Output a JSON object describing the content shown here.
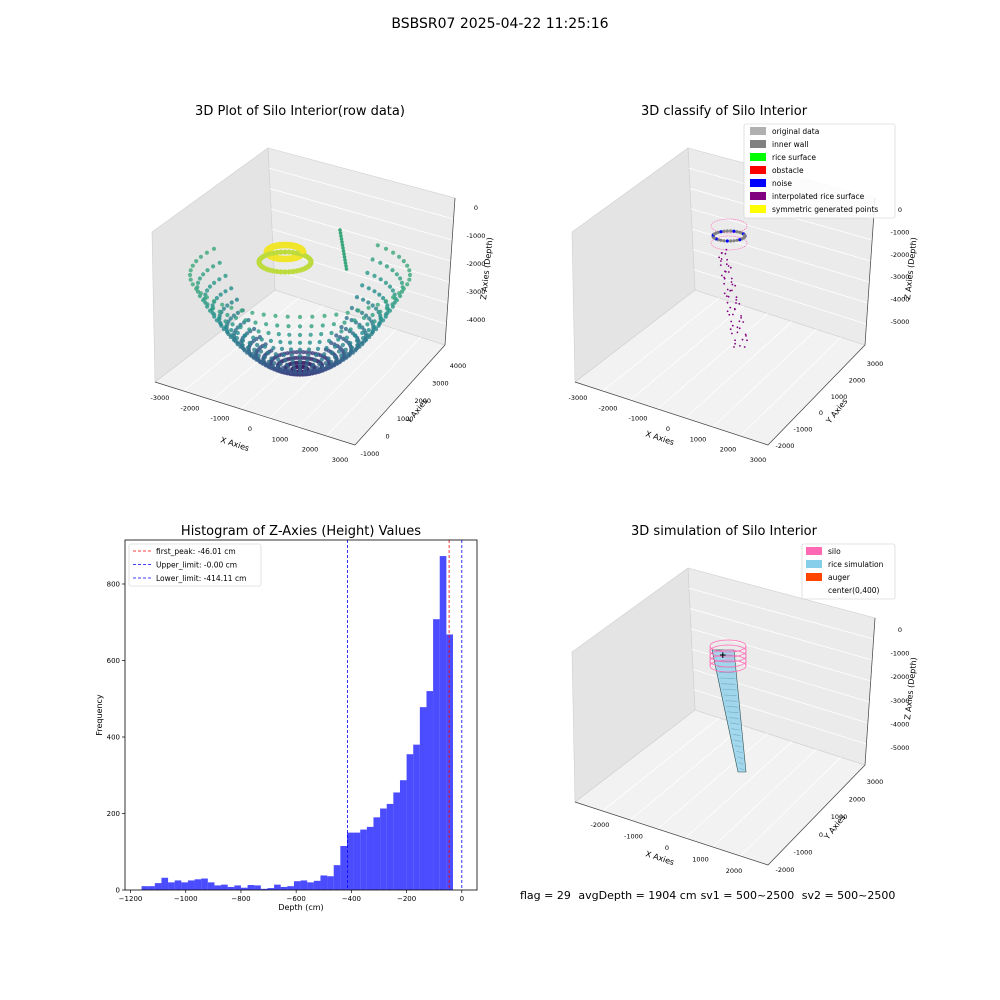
{
  "figure": {
    "suptitle": "BSBSR07 2025-04-22 11:25:16"
  },
  "panels": {
    "raw": {
      "title": "3D Plot of Silo Interior(row data)",
      "xlabel": "X Axies",
      "ylabel": "Y Axies",
      "zlabel": "Z Axies (Depth)",
      "xticks": [
        "-3000",
        "-2000",
        "-1000",
        "0",
        "1000",
        "2000",
        "3000"
      ],
      "yticks": [
        "-1000",
        "0",
        "1000",
        "2000",
        "3000",
        "4000"
      ],
      "zticks": [
        "0",
        "-1000",
        "-2000",
        "-3000",
        "-4000"
      ]
    },
    "classify": {
      "title": "3D classify of Silo Interior",
      "xlabel": "X Axies",
      "ylabel": "Y Axies",
      "zlabel": "Z Axies (Depth)",
      "xticks": [
        "-3000",
        "-2000",
        "-1000",
        "0",
        "1000",
        "2000",
        "3000"
      ],
      "yticks": [
        "-2000",
        "-1000",
        "0",
        "1000",
        "2000",
        "3000"
      ],
      "zticks": [
        "0",
        "-1000",
        "-2000",
        "-3000",
        "-4000",
        "-5000"
      ],
      "legend": [
        {
          "label": "original data",
          "color": "#b0b0b0"
        },
        {
          "label": "inner wall",
          "color": "#808080"
        },
        {
          "label": "rice surface",
          "color": "#00ff00"
        },
        {
          "label": "obstacle",
          "color": "#ff0000"
        },
        {
          "label": "noise",
          "color": "#0000ff"
        },
        {
          "label": "interpolated rice surface",
          "color": "#800080"
        },
        {
          "label": "symmetric generated points",
          "color": "#ffff00"
        }
      ]
    },
    "simulation": {
      "title": "3D simulation of Silo Interior",
      "xlabel": "X Axies",
      "ylabel": "Y Axies",
      "zlabel": "Z Axies (Depth)",
      "xticks": [
        "-2000",
        "-1000",
        "0",
        "1000",
        "2000"
      ],
      "yticks": [
        "-2000",
        "-1000",
        "0",
        "1000",
        "2000",
        "3000"
      ],
      "zticks": [
        "0",
        "-1000",
        "-2000",
        "-3000",
        "-4000",
        "-5000"
      ],
      "legend": [
        {
          "label": "silo",
          "color": "#ff69b4"
        },
        {
          "label": "rice simulation",
          "color": "#87ceeb"
        },
        {
          "label": "auger",
          "color": "#ff4500"
        },
        {
          "label": "center(0,400)",
          "color": "#ffffff"
        }
      ],
      "footer": {
        "flag": "flag = 29",
        "avg": "avgDepth = 1904 cm",
        "sv1": "sv1 = 500~2500",
        "sv2": "sv2 = 500~2500"
      }
    }
  },
  "chart_data": {
    "type": "bar",
    "title": "Histogram of Z-Axies (Height) Values",
    "xlabel": "Depth (cm)",
    "ylabel": "Frequency",
    "xlim": [
      -1220,
      55
    ],
    "ylim": [
      0,
      915
    ],
    "bin_start": -1160,
    "bin_width": 24,
    "values": [
      10,
      10,
      18,
      32,
      20,
      25,
      20,
      25,
      28,
      30,
      20,
      12,
      14,
      8,
      12,
      6,
      13,
      12,
      3,
      5,
      14,
      8,
      10,
      23,
      25,
      20,
      24,
      38,
      36,
      65,
      115,
      150,
      150,
      158,
      165,
      190,
      213,
      225,
      255,
      287,
      355,
      380,
      478,
      520,
      708,
      873,
      668
    ],
    "xticks": [
      -1200,
      -1000,
      -800,
      -600,
      -400,
      -200,
      0
    ],
    "xtick_labels": [
      "−1200",
      "−1000",
      "−800",
      "−600",
      "−400",
      "−200",
      "0"
    ],
    "yticks": [
      0,
      200,
      400,
      600,
      800
    ],
    "bar_color": "#0000ff",
    "grid": false,
    "legend_position": "upper left",
    "vlines": [
      {
        "label": "first_peak: -46.01 cm",
        "x": -46.01,
        "color": "#ff0000"
      },
      {
        "label": "Upper_limit: -0.00 cm",
        "x": 0,
        "color": "#0000ff"
      },
      {
        "label": "Lower_limit: -414.11 cm",
        "x": -414.11,
        "color": "#0000ff"
      }
    ]
  }
}
